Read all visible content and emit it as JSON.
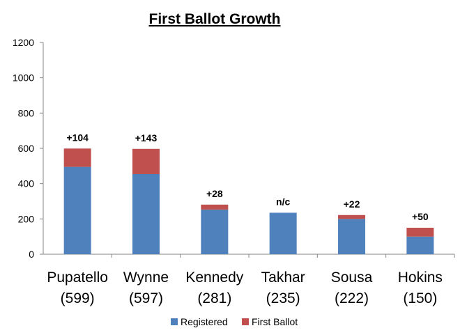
{
  "chart_data": {
    "type": "bar",
    "stacked": true,
    "title": "First Ballot Growth",
    "categories": [
      "Pupatello",
      "Wynne",
      "Kennedy",
      "Takhar",
      "Sousa",
      "Hokins"
    ],
    "category_totals": [
      "(599)",
      "(597)",
      "(281)",
      "(235)",
      "(222)",
      "(150)"
    ],
    "series": [
      {
        "name": "Registered",
        "color": "#4F81BD",
        "values": [
          495,
          454,
          253,
          235,
          200,
          100
        ]
      },
      {
        "name": "First Ballot",
        "color": "#C0504D",
        "values": [
          104,
          143,
          28,
          0,
          22,
          50
        ]
      }
    ],
    "data_labels": [
      "+104",
      "+143",
      "+28",
      "n/c",
      "+22",
      "+50"
    ],
    "ylim": [
      0,
      1200
    ],
    "yticks": [
      "0",
      "200",
      "400",
      "600",
      "800",
      "1000",
      "1200"
    ],
    "grid": false,
    "legend_position": "bottom"
  }
}
